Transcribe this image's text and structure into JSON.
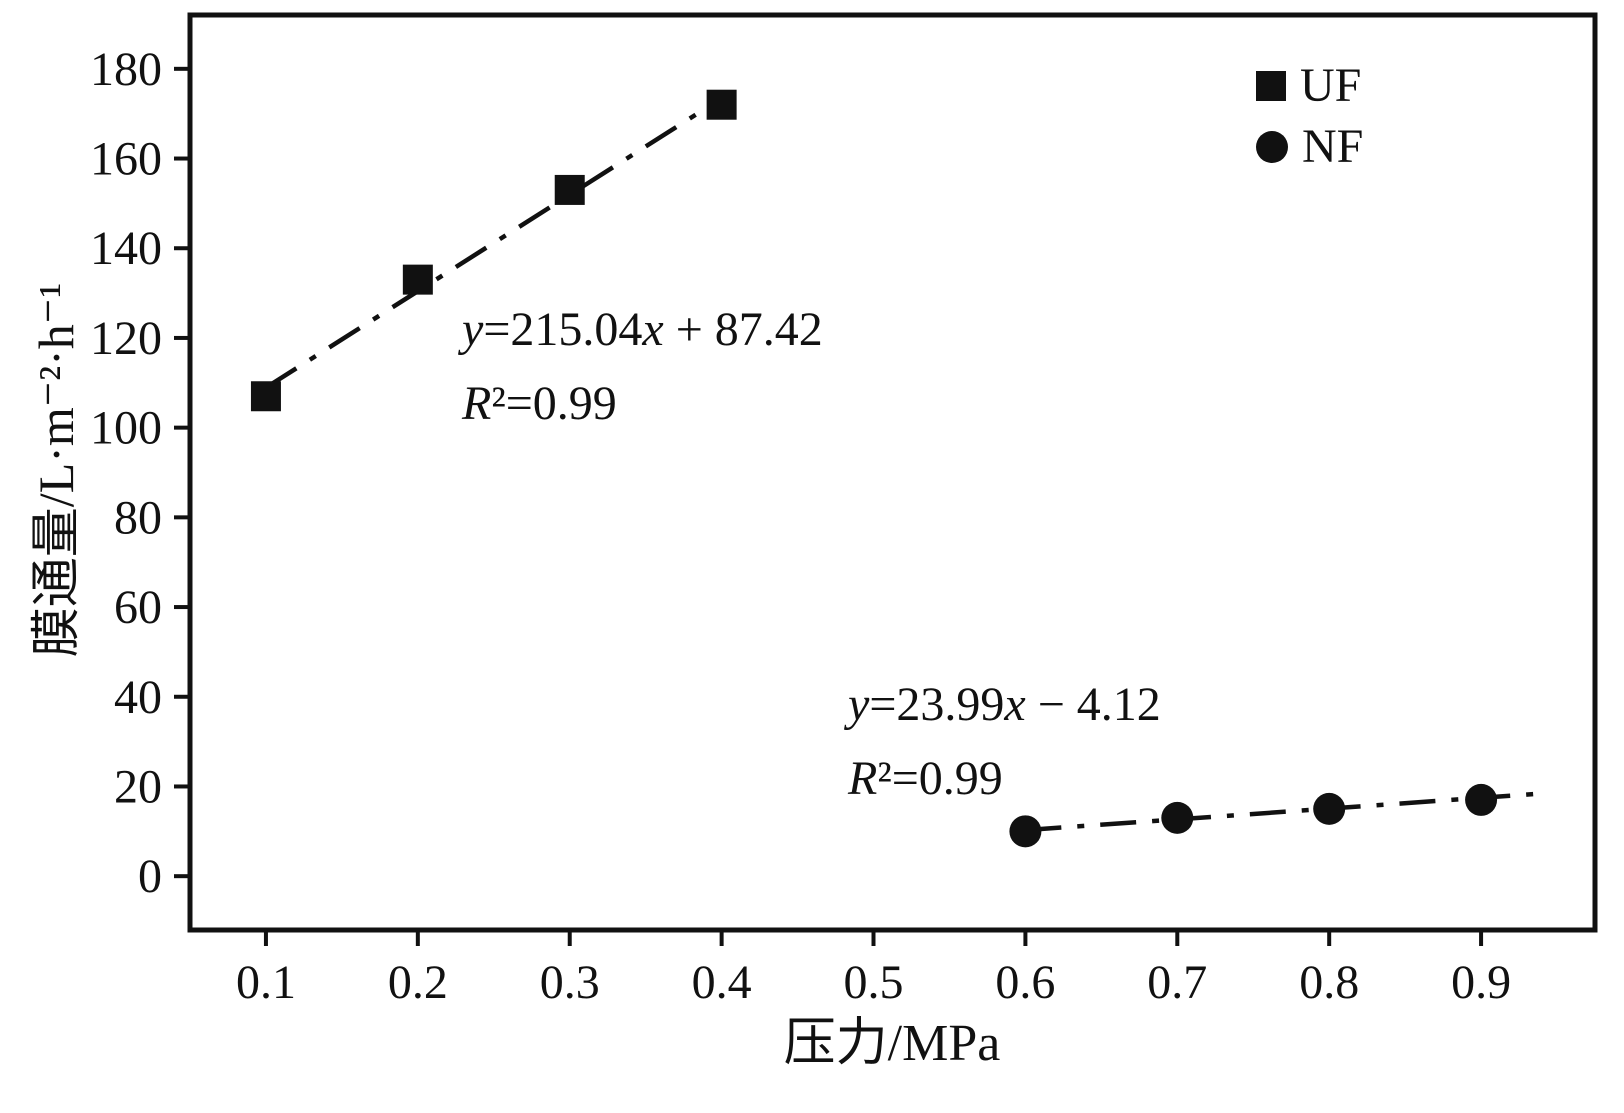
{
  "chart_data": {
    "type": "scatter",
    "title": "",
    "xlabel": "压力/MPa",
    "ylabel": "膜通量/L·m⁻²·h⁻¹",
    "xlim": [
      0.05,
      0.975
    ],
    "ylim": [
      -12,
      192
    ],
    "grid": false,
    "x_ticks": [
      0.1,
      0.2,
      0.3,
      0.4,
      0.5,
      0.6,
      0.7,
      0.8,
      0.9
    ],
    "y_ticks": [
      0,
      20,
      40,
      60,
      80,
      100,
      120,
      140,
      160,
      180
    ],
    "series": [
      {
        "name": "UF",
        "marker": "square",
        "x": [
          0.1,
          0.2,
          0.3,
          0.4
        ],
        "y": [
          107,
          133,
          153,
          172
        ],
        "fit": {
          "slope": 215.04,
          "intercept": 87.42,
          "x_start": 0.1,
          "x_end": 0.4
        },
        "equation": "y=215.04x + 87.42",
        "r_squared": "R²=0.99"
      },
      {
        "name": "NF",
        "marker": "circle",
        "x": [
          0.6,
          0.7,
          0.8,
          0.9
        ],
        "y": [
          10,
          13,
          15,
          17
        ],
        "fit": {
          "slope": 23.99,
          "intercept": -4.12,
          "x_start": 0.6,
          "x_end": 0.935
        },
        "equation": "y=23.99x − 4.12",
        "r_squared": "R²=0.99"
      }
    ],
    "legend": {
      "position": "top-right",
      "entries": [
        "UF",
        "NF"
      ]
    },
    "colors": {
      "data": "#111111",
      "background": "#ffffff"
    }
  }
}
